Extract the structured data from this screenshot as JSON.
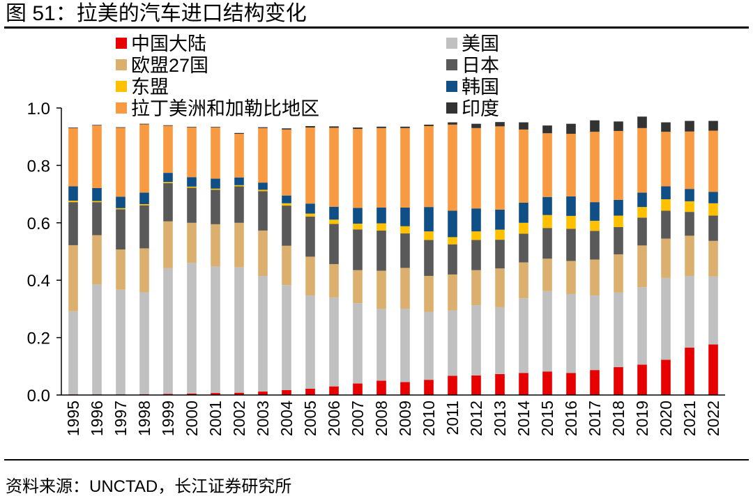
{
  "figure": {
    "title": "图 51：拉美的汽车进口结构变化",
    "source": "资料来源：UNCTAD，长江证券研究所"
  },
  "chart_data": {
    "type": "bar",
    "stacked": true,
    "ylim": [
      0,
      1.0
    ],
    "yticks": [
      "0.0",
      "0.2",
      "0.4",
      "0.6",
      "0.8",
      "1.0"
    ],
    "legend_position": "top",
    "categories": [
      "1995",
      "1996",
      "1997",
      "1998",
      "1999",
      "2000",
      "2001",
      "2002",
      "2003",
      "2004",
      "2005",
      "2006",
      "2007",
      "2008",
      "2009",
      "2010",
      "2011",
      "2012",
      "2013",
      "2014",
      "2015",
      "2016",
      "2017",
      "2018",
      "2019",
      "2020",
      "2021",
      "2022"
    ],
    "series": [
      {
        "name": "中国大陆",
        "color": "#e60000",
        "values": [
          0.002,
          0.002,
          0.002,
          0.003,
          0.004,
          0.005,
          0.007,
          0.008,
          0.012,
          0.017,
          0.022,
          0.03,
          0.04,
          0.05,
          0.045,
          0.053,
          0.067,
          0.068,
          0.073,
          0.077,
          0.082,
          0.077,
          0.087,
          0.097,
          0.106,
          0.123,
          0.165,
          0.176
        ]
      },
      {
        "name": "美国",
        "color": "#c0c0c0",
        "values": [
          0.29,
          0.383,
          0.365,
          0.355,
          0.438,
          0.456,
          0.441,
          0.437,
          0.403,
          0.366,
          0.325,
          0.31,
          0.28,
          0.25,
          0.256,
          0.237,
          0.228,
          0.245,
          0.233,
          0.26,
          0.28,
          0.275,
          0.26,
          0.26,
          0.27,
          0.285,
          0.25,
          0.237
        ]
      },
      {
        "name": "欧盟27国",
        "color": "#dbb06e",
        "values": [
          0.23,
          0.172,
          0.14,
          0.153,
          0.163,
          0.139,
          0.147,
          0.155,
          0.158,
          0.137,
          0.135,
          0.116,
          0.115,
          0.133,
          0.142,
          0.125,
          0.125,
          0.122,
          0.135,
          0.125,
          0.113,
          0.115,
          0.125,
          0.133,
          0.145,
          0.137,
          0.14,
          0.124
        ]
      },
      {
        "name": "日本",
        "color": "#595959",
        "values": [
          0.15,
          0.115,
          0.14,
          0.15,
          0.133,
          0.122,
          0.12,
          0.127,
          0.137,
          0.14,
          0.14,
          0.14,
          0.142,
          0.14,
          0.12,
          0.125,
          0.105,
          0.105,
          0.1,
          0.1,
          0.107,
          0.112,
          0.1,
          0.095,
          0.097,
          0.097,
          0.083,
          0.088
        ]
      },
      {
        "name": "东盟",
        "color": "#ffc000",
        "values": [
          0.005,
          0.004,
          0.004,
          0.004,
          0.004,
          0.004,
          0.004,
          0.004,
          0.005,
          0.008,
          0.01,
          0.015,
          0.02,
          0.025,
          0.025,
          0.03,
          0.025,
          0.03,
          0.035,
          0.038,
          0.045,
          0.045,
          0.035,
          0.04,
          0.037,
          0.04,
          0.037,
          0.043
        ]
      },
      {
        "name": "韩国",
        "color": "#0f4f85",
        "values": [
          0.05,
          0.045,
          0.04,
          0.04,
          0.032,
          0.033,
          0.035,
          0.027,
          0.025,
          0.027,
          0.035,
          0.045,
          0.055,
          0.055,
          0.065,
          0.085,
          0.092,
          0.08,
          0.07,
          0.07,
          0.063,
          0.068,
          0.065,
          0.055,
          0.05,
          0.045,
          0.043,
          0.04
        ]
      },
      {
        "name": "拉丁美洲和加勒比地区",
        "color": "#f79a42",
        "values": [
          0.203,
          0.218,
          0.24,
          0.238,
          0.164,
          0.173,
          0.178,
          0.152,
          0.19,
          0.23,
          0.265,
          0.275,
          0.275,
          0.277,
          0.277,
          0.282,
          0.3,
          0.28,
          0.29,
          0.255,
          0.222,
          0.218,
          0.245,
          0.24,
          0.225,
          0.19,
          0.2,
          0.213
        ]
      },
      {
        "name": "印度",
        "color": "#333333",
        "values": [
          0.002,
          0.002,
          0.002,
          0.002,
          0.002,
          0.002,
          0.002,
          0.003,
          0.003,
          0.004,
          0.005,
          0.005,
          0.005,
          0.005,
          0.005,
          0.005,
          0.008,
          0.015,
          0.015,
          0.025,
          0.027,
          0.035,
          0.04,
          0.033,
          0.04,
          0.033,
          0.037,
          0.034
        ]
      }
    ]
  }
}
